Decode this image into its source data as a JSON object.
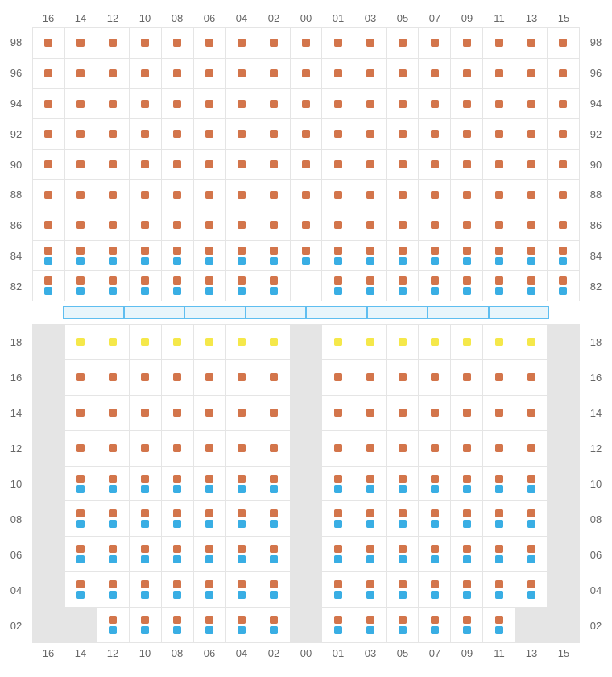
{
  "colors": {
    "orange": "#d3754b",
    "blue": "#39aee4",
    "yellow": "#f5e84a",
    "gray_bg": "#e5e5e5",
    "grid_line": "#e5e5e5",
    "text": "#666666",
    "bar_fill": "#e8f5fb",
    "bar_border": "#5fbef0"
  },
  "column_headers": [
    "16",
    "14",
    "12",
    "10",
    "08",
    "06",
    "04",
    "02",
    "00",
    "01",
    "03",
    "05",
    "07",
    "09",
    "11",
    "13",
    "15"
  ],
  "upper": {
    "row_labels": [
      "98",
      "96",
      "94",
      "92",
      "90",
      "88",
      "86",
      "84",
      "82"
    ],
    "cells": [
      [
        [
          "o"
        ],
        [
          "o"
        ],
        [
          "o"
        ],
        [
          "o"
        ],
        [
          "o"
        ],
        [
          "o"
        ],
        [
          "o"
        ],
        [
          "o"
        ],
        [
          "o"
        ],
        [
          "o"
        ],
        [
          "o"
        ],
        [
          "o"
        ],
        [
          "o"
        ],
        [
          "o"
        ],
        [
          "o"
        ],
        [
          "o"
        ],
        [
          "o"
        ]
      ],
      [
        [
          "o"
        ],
        [
          "o"
        ],
        [
          "o"
        ],
        [
          "o"
        ],
        [
          "o"
        ],
        [
          "o"
        ],
        [
          "o"
        ],
        [
          "o"
        ],
        [
          "o"
        ],
        [
          "o"
        ],
        [
          "o"
        ],
        [
          "o"
        ],
        [
          "o"
        ],
        [
          "o"
        ],
        [
          "o"
        ],
        [
          "o"
        ],
        [
          "o"
        ]
      ],
      [
        [
          "o"
        ],
        [
          "o"
        ],
        [
          "o"
        ],
        [
          "o"
        ],
        [
          "o"
        ],
        [
          "o"
        ],
        [
          "o"
        ],
        [
          "o"
        ],
        [
          "o"
        ],
        [
          "o"
        ],
        [
          "o"
        ],
        [
          "o"
        ],
        [
          "o"
        ],
        [
          "o"
        ],
        [
          "o"
        ],
        [
          "o"
        ],
        [
          "o"
        ]
      ],
      [
        [
          "o"
        ],
        [
          "o"
        ],
        [
          "o"
        ],
        [
          "o"
        ],
        [
          "o"
        ],
        [
          "o"
        ],
        [
          "o"
        ],
        [
          "o"
        ],
        [
          "o"
        ],
        [
          "o"
        ],
        [
          "o"
        ],
        [
          "o"
        ],
        [
          "o"
        ],
        [
          "o"
        ],
        [
          "o"
        ],
        [
          "o"
        ],
        [
          "o"
        ]
      ],
      [
        [
          "o"
        ],
        [
          "o"
        ],
        [
          "o"
        ],
        [
          "o"
        ],
        [
          "o"
        ],
        [
          "o"
        ],
        [
          "o"
        ],
        [
          "o"
        ],
        [
          "o"
        ],
        [
          "o"
        ],
        [
          "o"
        ],
        [
          "o"
        ],
        [
          "o"
        ],
        [
          "o"
        ],
        [
          "o"
        ],
        [
          "o"
        ],
        [
          "o"
        ]
      ],
      [
        [
          "o"
        ],
        [
          "o"
        ],
        [
          "o"
        ],
        [
          "o"
        ],
        [
          "o"
        ],
        [
          "o"
        ],
        [
          "o"
        ],
        [
          "o"
        ],
        [
          "o"
        ],
        [
          "o"
        ],
        [
          "o"
        ],
        [
          "o"
        ],
        [
          "o"
        ],
        [
          "o"
        ],
        [
          "o"
        ],
        [
          "o"
        ],
        [
          "o"
        ]
      ],
      [
        [
          "o"
        ],
        [
          "o"
        ],
        [
          "o"
        ],
        [
          "o"
        ],
        [
          "o"
        ],
        [
          "o"
        ],
        [
          "o"
        ],
        [
          "o"
        ],
        [
          "o"
        ],
        [
          "o"
        ],
        [
          "o"
        ],
        [
          "o"
        ],
        [
          "o"
        ],
        [
          "o"
        ],
        [
          "o"
        ],
        [
          "o"
        ],
        [
          "o"
        ]
      ],
      [
        [
          "o",
          "b"
        ],
        [
          "o",
          "b"
        ],
        [
          "o",
          "b"
        ],
        [
          "o",
          "b"
        ],
        [
          "o",
          "b"
        ],
        [
          "o",
          "b"
        ],
        [
          "o",
          "b"
        ],
        [
          "o",
          "b"
        ],
        [
          "o",
          "b"
        ],
        [
          "o",
          "b"
        ],
        [
          "o",
          "b"
        ],
        [
          "o",
          "b"
        ],
        [
          "o",
          "b"
        ],
        [
          "o",
          "b"
        ],
        [
          "o",
          "b"
        ],
        [
          "o",
          "b"
        ],
        [
          "o",
          "b"
        ]
      ],
      [
        [
          "o",
          "b"
        ],
        [
          "o",
          "b"
        ],
        [
          "o",
          "b"
        ],
        [
          "o",
          "b"
        ],
        [
          "o",
          "b"
        ],
        [
          "o",
          "b"
        ],
        [
          "o",
          "b"
        ],
        [
          "o",
          "b"
        ],
        [],
        [
          "o",
          "b"
        ],
        [
          "o",
          "b"
        ],
        [
          "o",
          "b"
        ],
        [
          "o",
          "b"
        ],
        [
          "o",
          "b"
        ],
        [
          "o",
          "b"
        ],
        [
          "o",
          "b"
        ],
        [
          "o",
          "b"
        ]
      ]
    ]
  },
  "bar_segments": 8,
  "lower": {
    "row_labels": [
      "18",
      "16",
      "14",
      "12",
      "10",
      "08",
      "06",
      "04",
      "02"
    ],
    "cells": [
      [
        {
          "g": true
        },
        [
          "y"
        ],
        [
          "y"
        ],
        [
          "y"
        ],
        [
          "y"
        ],
        [
          "y"
        ],
        [
          "y"
        ],
        [
          "y"
        ],
        {
          "g": true
        },
        [
          "y"
        ],
        [
          "y"
        ],
        [
          "y"
        ],
        [
          "y"
        ],
        [
          "y"
        ],
        [
          "y"
        ],
        [
          "y"
        ],
        {
          "g": true
        }
      ],
      [
        {
          "g": true
        },
        [
          "o"
        ],
        [
          "o"
        ],
        [
          "o"
        ],
        [
          "o"
        ],
        [
          "o"
        ],
        [
          "o"
        ],
        [
          "o"
        ],
        {
          "g": true
        },
        [
          "o"
        ],
        [
          "o"
        ],
        [
          "o"
        ],
        [
          "o"
        ],
        [
          "o"
        ],
        [
          "o"
        ],
        [
          "o"
        ],
        {
          "g": true
        }
      ],
      [
        {
          "g": true
        },
        [
          "o"
        ],
        [
          "o"
        ],
        [
          "o"
        ],
        [
          "o"
        ],
        [
          "o"
        ],
        [
          "o"
        ],
        [
          "o"
        ],
        {
          "g": true
        },
        [
          "o"
        ],
        [
          "o"
        ],
        [
          "o"
        ],
        [
          "o"
        ],
        [
          "o"
        ],
        [
          "o"
        ],
        [
          "o"
        ],
        {
          "g": true
        }
      ],
      [
        {
          "g": true
        },
        [
          "o"
        ],
        [
          "o"
        ],
        [
          "o"
        ],
        [
          "o"
        ],
        [
          "o"
        ],
        [
          "o"
        ],
        [
          "o"
        ],
        {
          "g": true
        },
        [
          "o"
        ],
        [
          "o"
        ],
        [
          "o"
        ],
        [
          "o"
        ],
        [
          "o"
        ],
        [
          "o"
        ],
        [
          "o"
        ],
        {
          "g": true
        }
      ],
      [
        {
          "g": true
        },
        [
          "o",
          "b"
        ],
        [
          "o",
          "b"
        ],
        [
          "o",
          "b"
        ],
        [
          "o",
          "b"
        ],
        [
          "o",
          "b"
        ],
        [
          "o",
          "b"
        ],
        [
          "o",
          "b"
        ],
        {
          "g": true
        },
        [
          "o",
          "b"
        ],
        [
          "o",
          "b"
        ],
        [
          "o",
          "b"
        ],
        [
          "o",
          "b"
        ],
        [
          "o",
          "b"
        ],
        [
          "o",
          "b"
        ],
        [
          "o",
          "b"
        ],
        {
          "g": true
        }
      ],
      [
        {
          "g": true
        },
        [
          "o",
          "b"
        ],
        [
          "o",
          "b"
        ],
        [
          "o",
          "b"
        ],
        [
          "o",
          "b"
        ],
        [
          "o",
          "b"
        ],
        [
          "o",
          "b"
        ],
        [
          "o",
          "b"
        ],
        {
          "g": true
        },
        [
          "o",
          "b"
        ],
        [
          "o",
          "b"
        ],
        [
          "o",
          "b"
        ],
        [
          "o",
          "b"
        ],
        [
          "o",
          "b"
        ],
        [
          "o",
          "b"
        ],
        [
          "o",
          "b"
        ],
        {
          "g": true
        }
      ],
      [
        {
          "g": true
        },
        [
          "o",
          "b"
        ],
        [
          "o",
          "b"
        ],
        [
          "o",
          "b"
        ],
        [
          "o",
          "b"
        ],
        [
          "o",
          "b"
        ],
        [
          "o",
          "b"
        ],
        [
          "o",
          "b"
        ],
        {
          "g": true
        },
        [
          "o",
          "b"
        ],
        [
          "o",
          "b"
        ],
        [
          "o",
          "b"
        ],
        [
          "o",
          "b"
        ],
        [
          "o",
          "b"
        ],
        [
          "o",
          "b"
        ],
        [
          "o",
          "b"
        ],
        {
          "g": true
        }
      ],
      [
        {
          "g": true
        },
        [
          "o",
          "b"
        ],
        [
          "o",
          "b"
        ],
        [
          "o",
          "b"
        ],
        [
          "o",
          "b"
        ],
        [
          "o",
          "b"
        ],
        [
          "o",
          "b"
        ],
        [
          "o",
          "b"
        ],
        {
          "g": true
        },
        [
          "o",
          "b"
        ],
        [
          "o",
          "b"
        ],
        [
          "o",
          "b"
        ],
        [
          "o",
          "b"
        ],
        [
          "o",
          "b"
        ],
        [
          "o",
          "b"
        ],
        [
          "o",
          "b"
        ],
        {
          "g": true
        }
      ],
      [
        {
          "g": true
        },
        {
          "g": true
        },
        [
          "o",
          "b"
        ],
        [
          "o",
          "b"
        ],
        [
          "o",
          "b"
        ],
        [
          "o",
          "b"
        ],
        [
          "o",
          "b"
        ],
        [
          "o",
          "b"
        ],
        {
          "g": true
        },
        [
          "o",
          "b"
        ],
        [
          "o",
          "b"
        ],
        [
          "o",
          "b"
        ],
        [
          "o",
          "b"
        ],
        [
          "o",
          "b"
        ],
        [
          "o",
          "b"
        ],
        {
          "g": true
        },
        {
          "g": true
        }
      ]
    ]
  }
}
